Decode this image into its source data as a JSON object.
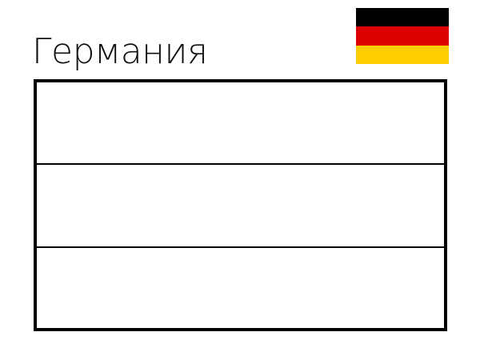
{
  "title": "Германия",
  "flag": {
    "colors": [
      "#000000",
      "#dd0000",
      "#ffce00"
    ]
  },
  "coloring_outline": {
    "stripes": 3,
    "fill": "#ffffff",
    "stroke": "#000000"
  }
}
